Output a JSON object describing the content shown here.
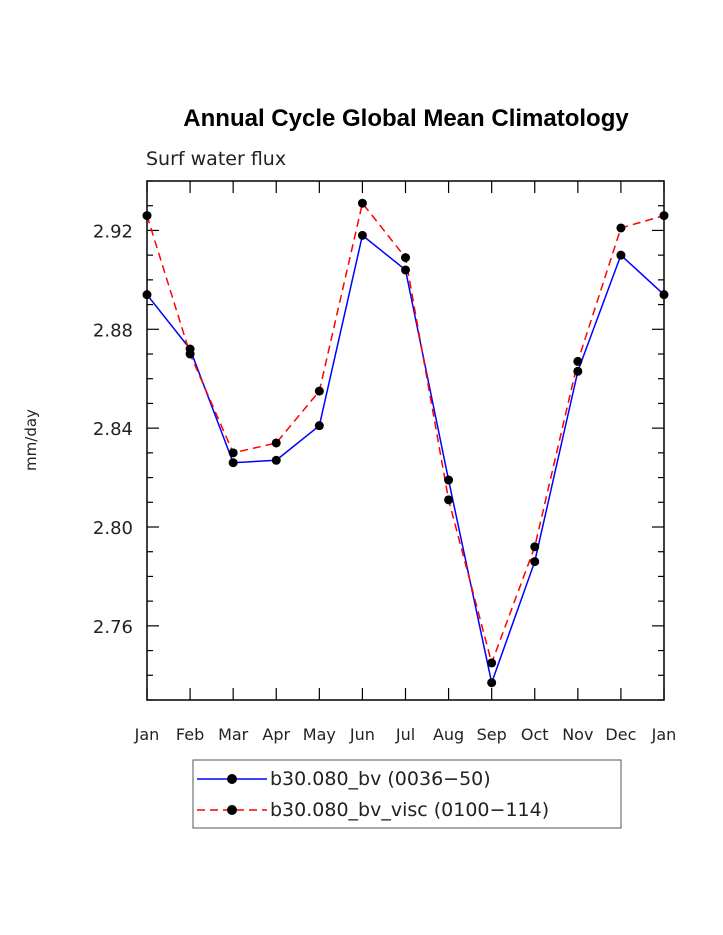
{
  "chart_data": {
    "type": "line",
    "title": "Annual Cycle Global Mean Climatology",
    "subtitle": "Surf water flux",
    "xlabel": "",
    "ylabel": "mm/day",
    "categories": [
      "Jan",
      "Feb",
      "Mar",
      "Apr",
      "May",
      "Jun",
      "Jul",
      "Aug",
      "Sep",
      "Oct",
      "Nov",
      "Dec",
      "Jan"
    ],
    "ylim": [
      2.73,
      2.94
    ],
    "yticks": [
      2.76,
      2.8,
      2.84,
      2.88,
      2.92
    ],
    "ytick_labels": [
      "2.76",
      "2.80",
      "2.84",
      "2.88",
      "2.92"
    ],
    "grid": false,
    "legend_position": "bottom",
    "series": [
      {
        "name": "b30.080_bv (0036−50)",
        "color": "#0000ff",
        "dash": "solid",
        "values": [
          2.894,
          2.872,
          2.826,
          2.827,
          2.841,
          2.918,
          2.904,
          2.819,
          2.737,
          2.786,
          2.863,
          2.91,
          2.894
        ]
      },
      {
        "name": "b30.080_bv_visc (0100−114)",
        "color": "#ff0000",
        "dash": "dashed",
        "values": [
          2.926,
          2.87,
          2.83,
          2.834,
          2.855,
          2.931,
          2.909,
          2.811,
          2.745,
          2.792,
          2.867,
          2.921,
          2.926
        ]
      }
    ]
  }
}
